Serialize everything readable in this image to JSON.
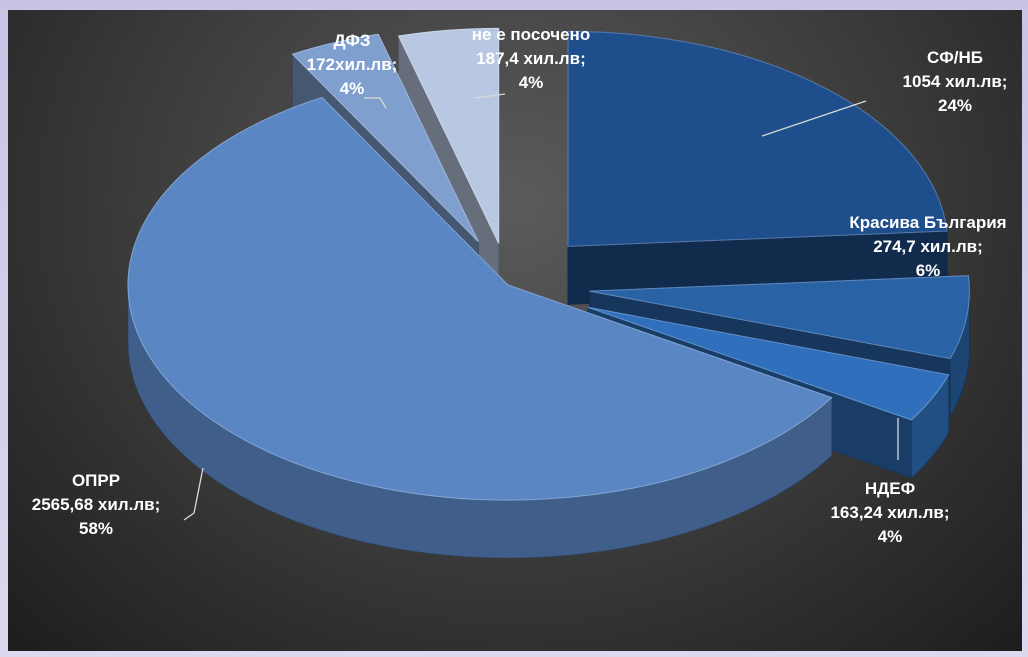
{
  "chart_data": {
    "type": "pie",
    "style": "3d-exploded",
    "background": "#3a3a3a",
    "slices": [
      {
        "name": "СФ/НБ",
        "value": 1054,
        "value_text": "1054 хил.лв;",
        "percent_text": "24%",
        "color": "#1f4e8c"
      },
      {
        "name": "Красива България",
        "value": 274.7,
        "value_text": "274,7 хил.лв;",
        "percent_text": "6%",
        "color": "#2a62a6"
      },
      {
        "name": "НДЕФ",
        "value": 163.24,
        "value_text": "163,24 хил.лв;",
        "percent_text": "4%",
        "color": "#2f6fbb"
      },
      {
        "name": "ОПРР",
        "value": 2565.68,
        "value_text": "2565,68 хил.лв;",
        "percent_text": "58%",
        "color": "#5a86c4"
      },
      {
        "name": "ДФЗ",
        "value": 172,
        "value_text": "172хил.лв;",
        "percent_text": "4%",
        "color": "#7f9fcf"
      },
      {
        "name": "не е посочено",
        "value": 187.4,
        "value_text": "187,4 хил.лв;",
        "percent_text": "4%",
        "color": "#b9c8e2"
      }
    ]
  }
}
